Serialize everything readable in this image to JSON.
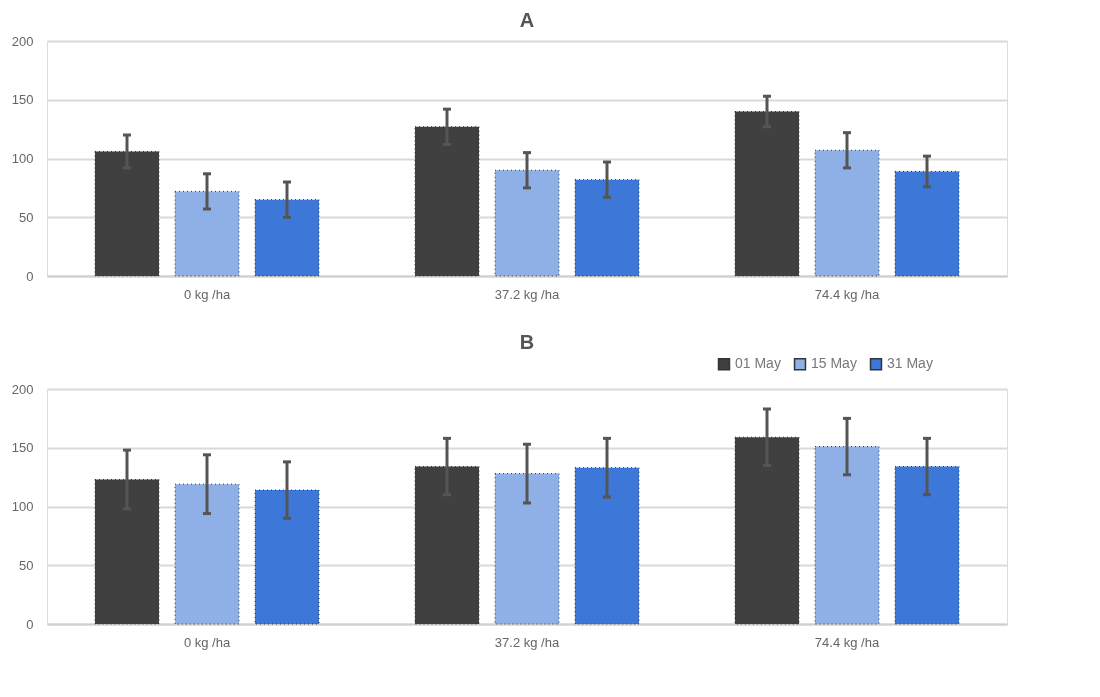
{
  "chart_data": [
    {
      "type": "bar",
      "title": "A",
      "categories": [
        "0 kg /ha",
        "37.2 kg /ha",
        "74.4 kg /ha"
      ],
      "series": [
        {
          "color": "#404040",
          "values": [
            106,
            127,
            140
          ],
          "errors": [
            14,
            15,
            13
          ]
        },
        {
          "color": "#8fb0e6",
          "values": [
            72,
            90,
            107
          ],
          "errors": [
            15,
            15,
            15
          ]
        },
        {
          "color": "#3d78d8",
          "values": [
            65,
            82,
            89
          ],
          "errors": [
            15,
            15,
            13
          ]
        }
      ],
      "ylim": [
        0,
        200
      ],
      "yticks": [
        0,
        50,
        100,
        150,
        200
      ],
      "grid": "y",
      "legend": false
    },
    {
      "type": "bar",
      "title": "B",
      "categories": [
        "0 kg /ha",
        "37.2 kg /ha",
        "74.4 kg /ha"
      ],
      "series": [
        {
          "name": "01 May",
          "color": "#404040",
          "values": [
            123,
            134,
            159
          ],
          "errors": [
            25,
            24,
            24
          ]
        },
        {
          "name": "15 May",
          "color": "#8fb0e6",
          "values": [
            119,
            128,
            151
          ],
          "errors": [
            25,
            25,
            24
          ]
        },
        {
          "name": "31 May",
          "color": "#3d78d8",
          "values": [
            114,
            133,
            134
          ],
          "errors": [
            24,
            25,
            24
          ]
        }
      ],
      "ylim": [
        0,
        200
      ],
      "yticks": [
        0,
        50,
        100,
        150,
        200
      ],
      "grid": "y",
      "legend": "top right"
    }
  ]
}
